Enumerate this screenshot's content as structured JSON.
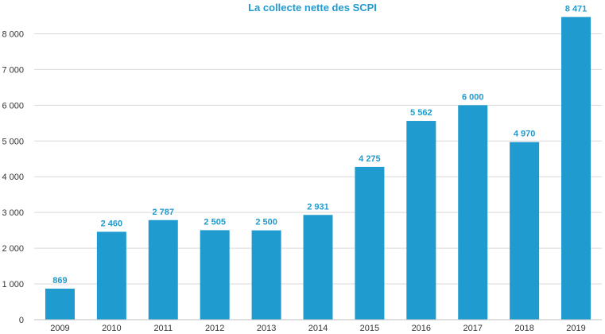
{
  "chart_data": {
    "type": "bar",
    "title": "La collecte nette des SCPI",
    "xlabel": "",
    "ylabel": "",
    "categories": [
      "2009",
      "2010",
      "2011",
      "2012",
      "2013",
      "2014",
      "2015",
      "2016",
      "2017",
      "2018",
      "2019"
    ],
    "values": [
      869,
      2460,
      2787,
      2505,
      2500,
      2931,
      4275,
      5562,
      6000,
      4970,
      8471
    ],
    "value_labels": [
      "869",
      "2 460",
      "2 787",
      "2 505",
      "2 500",
      "2 931",
      "4 275",
      "5 562",
      "6 000",
      "4 970",
      "8 471"
    ],
    "ylim": [
      0,
      8800
    ],
    "yticks": [
      0,
      1000,
      2000,
      3000,
      4000,
      5000,
      6000,
      7000,
      8000
    ],
    "ytick_labels": [
      "0",
      "1 000",
      "2 000",
      "3 000",
      "4 000",
      "5 000",
      "6 000",
      "7 000",
      "8 000"
    ],
    "grid": true,
    "legend": "none",
    "bar_color": "#1f9bd0"
  }
}
